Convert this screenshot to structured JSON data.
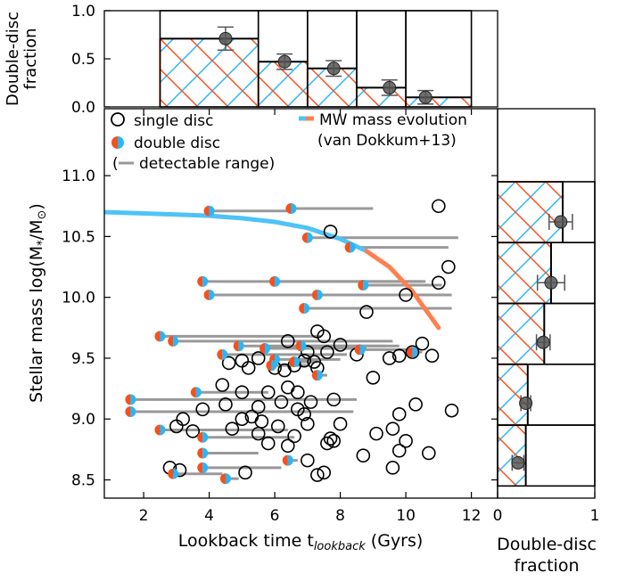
{
  "chart_data": [
    {
      "id": "main",
      "type": "scatter",
      "xlabel": "Lookback time t",
      "xlabel_sub": "lookback",
      "xlabel_units": " (Gyrs)",
      "ylabel": "Stellar mass log(M",
      "ylabel_sub1": "*",
      "ylabel_mid": "/M",
      "ylabel_sub2": "⊙",
      "ylabel_end": ")",
      "xlim": [
        0.8,
        12.8
      ],
      "ylim": [
        8.35,
        11.55
      ],
      "xticks": [
        "2",
        "4",
        "6",
        "8",
        "10",
        "12"
      ],
      "yticks": [
        "8.5",
        "9.0",
        "9.5",
        "10.0",
        "10.5",
        "11.0"
      ],
      "legend": {
        "placement": "top",
        "single": "single disc",
        "double": "double disc",
        "range": "detectable range",
        "mw_line1": "MW mass evolution",
        "mw_line2": "(van Dokkum+13)"
      },
      "colors": {
        "orange": "#f4511e",
        "blue": "#29b6f6",
        "mw_blue": "#4fc3f7",
        "mw_orange": "#ff7f50",
        "range": "#999999"
      },
      "mw_track": [
        {
          "t": 0.8,
          "m": 10.7
        },
        {
          "t": 2.0,
          "m": 10.69
        },
        {
          "t": 3.0,
          "m": 10.68
        },
        {
          "t": 4.0,
          "m": 10.67
        },
        {
          "t": 5.0,
          "m": 10.65
        },
        {
          "t": 6.0,
          "m": 10.62
        },
        {
          "t": 7.0,
          "m": 10.57
        },
        {
          "t": 8.0,
          "m": 10.48
        },
        {
          "t": 8.8,
          "m": 10.38
        },
        {
          "t": 9.5,
          "m": 10.25
        },
        {
          "t": 10.2,
          "m": 10.05
        },
        {
          "t": 10.6,
          "m": 9.9
        },
        {
          "t": 11.0,
          "m": 9.75
        }
      ],
      "mw_switch_t": 8.8,
      "single_disc": [
        [
          11.0,
          10.75
        ],
        [
          7.7,
          10.54
        ],
        [
          11.3,
          10.25
        ],
        [
          11.0,
          10.12
        ],
        [
          10.0,
          10.02
        ],
        [
          8.8,
          9.88
        ],
        [
          7.3,
          9.72
        ],
        [
          7.5,
          9.68
        ],
        [
          6.4,
          9.64
        ],
        [
          10.5,
          9.62
        ],
        [
          8.0,
          9.61
        ],
        [
          10.2,
          9.55
        ],
        [
          7.0,
          9.55
        ],
        [
          7.6,
          9.55
        ],
        [
          8.5,
          9.53
        ],
        [
          9.8,
          9.52
        ],
        [
          9.5,
          9.5
        ],
        [
          10.8,
          9.52
        ],
        [
          5.5,
          9.5
        ],
        [
          6.9,
          9.48
        ],
        [
          7.2,
          9.47
        ],
        [
          5.0,
          9.48
        ],
        [
          4.6,
          9.46
        ],
        [
          5.2,
          9.42
        ],
        [
          6.0,
          9.42
        ],
        [
          6.3,
          9.4
        ],
        [
          6.6,
          9.44
        ],
        [
          7.3,
          9.42
        ],
        [
          9.0,
          9.34
        ],
        [
          4.4,
          9.28
        ],
        [
          6.4,
          9.26
        ],
        [
          5.0,
          9.22
        ],
        [
          5.8,
          9.22
        ],
        [
          6.7,
          9.22
        ],
        [
          7.8,
          9.16
        ],
        [
          4.5,
          9.12
        ],
        [
          6.2,
          9.14
        ],
        [
          7.1,
          9.14
        ],
        [
          5.5,
          9.1
        ],
        [
          6.7,
          9.08
        ],
        [
          3.8,
          9.08
        ],
        [
          10.3,
          9.12
        ],
        [
          11.4,
          9.07
        ],
        [
          9.8,
          9.04
        ],
        [
          6.9,
          9.04
        ],
        [
          5.3,
          9.02
        ],
        [
          5.0,
          9.0
        ],
        [
          3.2,
          9.0
        ],
        [
          5.6,
          8.98
        ],
        [
          7.0,
          8.96
        ],
        [
          8.0,
          8.96
        ],
        [
          6.1,
          8.94
        ],
        [
          4.7,
          8.92
        ],
        [
          3.5,
          8.9
        ],
        [
          3.0,
          8.94
        ],
        [
          9.6,
          8.92
        ],
        [
          9.1,
          8.88
        ],
        [
          5.5,
          8.88
        ],
        [
          6.6,
          8.86
        ],
        [
          7.7,
          8.84
        ],
        [
          10.0,
          8.82
        ],
        [
          5.8,
          8.8
        ],
        [
          7.8,
          8.82
        ],
        [
          7.6,
          8.8
        ],
        [
          6.4,
          8.78
        ],
        [
          9.8,
          8.74
        ],
        [
          10.7,
          8.72
        ],
        [
          8.7,
          8.7
        ],
        [
          7.0,
          8.66
        ],
        [
          9.6,
          8.6
        ],
        [
          7.5,
          8.56
        ],
        [
          5.1,
          8.56
        ],
        [
          3.1,
          8.58
        ],
        [
          2.8,
          8.6
        ],
        [
          7.3,
          8.54
        ]
      ],
      "double_disc": [
        {
          "t": 4.0,
          "m": 10.71,
          "r": [
            4.0,
            6.6
          ]
        },
        {
          "t": 6.5,
          "m": 10.73,
          "r": [
            6.5,
            9.0
          ]
        },
        {
          "t": 7.0,
          "m": 10.49,
          "r": [
            7.0,
            11.6
          ]
        },
        {
          "t": 8.3,
          "m": 10.41,
          "r": [
            8.3,
            11.3
          ]
        },
        {
          "t": 3.8,
          "m": 10.13,
          "r": [
            3.8,
            10.6
          ]
        },
        {
          "t": 6.0,
          "m": 10.13,
          "r": [
            6.0,
            10.5
          ]
        },
        {
          "t": 8.7,
          "m": 10.1,
          "r": [
            8.7,
            11.1
          ]
        },
        {
          "t": 4.0,
          "m": 10.02,
          "r": [
            4.0,
            9.9
          ]
        },
        {
          "t": 7.3,
          "m": 10.02,
          "r": [
            7.3,
            11.4
          ]
        },
        {
          "t": 6.9,
          "m": 9.91,
          "r": [
            6.9,
            11.4
          ]
        },
        {
          "t": 2.5,
          "m": 9.68,
          "r": [
            2.5,
            7.4
          ]
        },
        {
          "t": 2.9,
          "m": 9.64,
          "r": [
            2.9,
            9.6
          ]
        },
        {
          "t": 4.9,
          "m": 9.6,
          "r": [
            4.9,
            9.4
          ]
        },
        {
          "t": 5.7,
          "m": 9.58,
          "r": [
            5.7,
            8.8
          ]
        },
        {
          "t": 6.8,
          "m": 9.6,
          "r": [
            6.8,
            9.8
          ]
        },
        {
          "t": 8.6,
          "m": 9.57,
          "r": [
            8.6,
            10.3
          ]
        },
        {
          "t": 10.2,
          "m": 9.55,
          "r": [
            10.2,
            10.5
          ]
        },
        {
          "t": 4.4,
          "m": 9.53,
          "r": [
            4.4,
            8.2
          ]
        },
        {
          "t": 6.0,
          "m": 9.49,
          "r": [
            6.0,
            8.0
          ]
        },
        {
          "t": 6.6,
          "m": 9.47,
          "r": [
            6.6,
            7.3
          ]
        },
        {
          "t": 5.9,
          "m": 9.44,
          "r": [
            5.9,
            7.0
          ]
        },
        {
          "t": 7.3,
          "m": 9.36,
          "r": [
            7.3,
            7.6
          ]
        },
        {
          "t": 3.6,
          "m": 9.22,
          "r": [
            3.6,
            5.8
          ]
        },
        {
          "t": 1.6,
          "m": 9.16,
          "r": [
            1.6,
            8.5
          ]
        },
        {
          "t": 1.6,
          "m": 9.06,
          "r": [
            1.6,
            8.4
          ]
        },
        {
          "t": 2.5,
          "m": 8.91,
          "r": [
            2.5,
            6.4
          ]
        },
        {
          "t": 3.8,
          "m": 8.85,
          "r": [
            3.8,
            6.6
          ]
        },
        {
          "t": 3.8,
          "m": 8.72,
          "r": [
            3.8,
            5.5
          ]
        },
        {
          "t": 6.4,
          "m": 8.66,
          "r": [
            6.4,
            6.7
          ]
        },
        {
          "t": 3.8,
          "m": 8.6,
          "r": [
            3.8,
            6.2
          ]
        },
        {
          "t": 2.9,
          "m": 8.55,
          "r": [
            2.9,
            4.4
          ]
        },
        {
          "t": 4.5,
          "m": 8.51,
          "r": [
            4.5,
            4.9
          ]
        }
      ]
    },
    {
      "id": "top",
      "type": "bar",
      "ylabel_line1": "Double-disc",
      "ylabel_line2": "fraction",
      "ylim": [
        0,
        1
      ],
      "yticks": [
        "0.0",
        "0.5",
        "1.0"
      ],
      "bins": [
        [
          2.5,
          5.5
        ],
        [
          5.5,
          7.0
        ],
        [
          7.0,
          8.5
        ],
        [
          8.5,
          10.0
        ],
        [
          10.0,
          12.0
        ]
      ],
      "values": [
        0.71,
        0.47,
        0.4,
        0.2,
        0.1
      ],
      "points": [
        {
          "x": 4.5,
          "y": 0.71,
          "err": 0.12
        },
        {
          "x": 6.3,
          "y": 0.47,
          "err": 0.08
        },
        {
          "x": 7.8,
          "y": 0.4,
          "err": 0.08
        },
        {
          "x": 9.5,
          "y": 0.2,
          "err": 0.08
        },
        {
          "x": 10.6,
          "y": 0.1,
          "err": 0.07
        }
      ]
    },
    {
      "id": "right",
      "type": "bar",
      "xlabel_line1": "Double-disc",
      "xlabel_line2": "fraction",
      "xlim": [
        0,
        1
      ],
      "xticks": [
        "0",
        "1"
      ],
      "bins": [
        [
          8.45,
          8.95
        ],
        [
          8.95,
          9.45
        ],
        [
          9.45,
          9.95
        ],
        [
          9.95,
          10.45
        ],
        [
          10.45,
          10.95
        ]
      ],
      "values": [
        0.29,
        0.31,
        0.48,
        0.55,
        0.67
      ],
      "points": [
        {
          "y": 8.64,
          "x": 0.21,
          "err": 0.06
        },
        {
          "y": 9.13,
          "x": 0.29,
          "err": 0.05
        },
        {
          "y": 9.63,
          "x": 0.47,
          "err": 0.07
        },
        {
          "y": 10.12,
          "x": 0.55,
          "err": 0.14
        },
        {
          "y": 10.62,
          "x": 0.65,
          "err": 0.12
        }
      ]
    }
  ]
}
